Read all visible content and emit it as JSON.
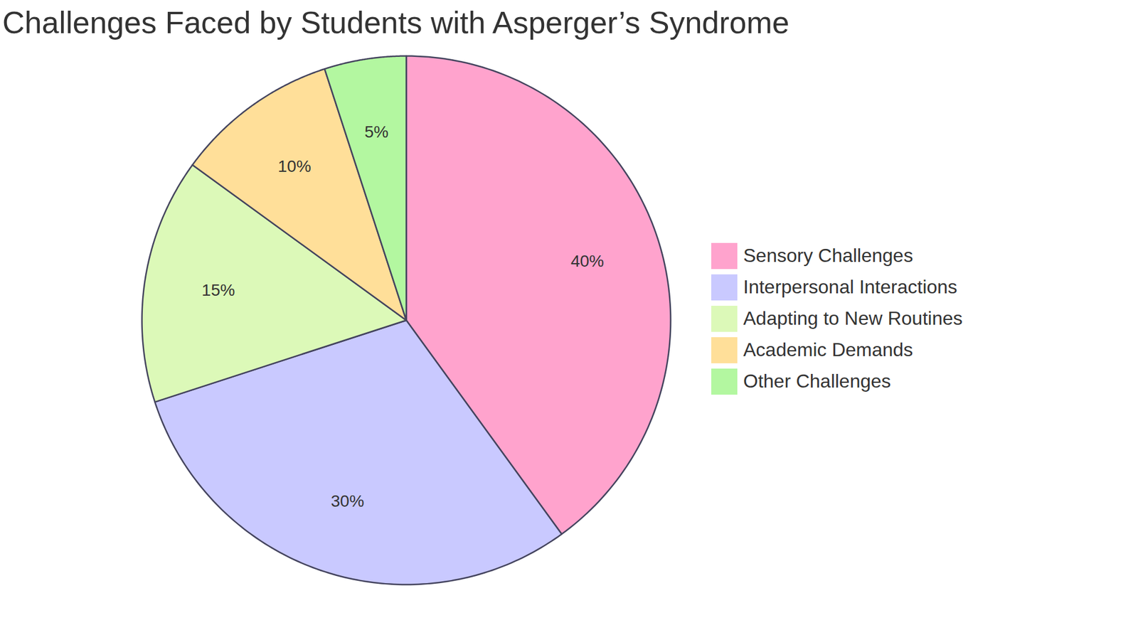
{
  "chart_data": {
    "type": "pie",
    "title": "Challenges Faced by Students with Asperger’s Syndrome",
    "categories": [
      "Sensory Challenges",
      "Interpersonal Interactions",
      "Adapting to New Routines",
      "Academic Demands",
      "Other Challenges"
    ],
    "values": [
      40,
      30,
      15,
      10,
      5
    ],
    "value_labels": [
      "40%",
      "30%",
      "15%",
      "10%",
      "5%"
    ],
    "colors": [
      "#ffa3cd",
      "#c9c9ff",
      "#dcf9b8",
      "#ffdf99",
      "#b3f7a0"
    ],
    "data_labels": true,
    "legend": "right"
  }
}
